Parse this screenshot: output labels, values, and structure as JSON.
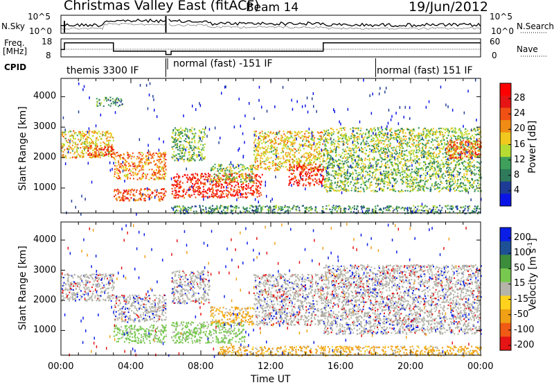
{
  "header": {
    "station": "Christmas Valley East (fitACF)",
    "beam": "Beam 14",
    "date": "19/Jun/2012"
  },
  "top_panels": {
    "nsky_label": "N.Sky",
    "nsky_ticks": [
      "10^5",
      "10^0"
    ],
    "nsearch_label": "N.Search",
    "nsearch_ticks": [
      "10^5",
      "10^0"
    ],
    "freq_label_1": "Freq.",
    "freq_label_2": "[MHz]",
    "freq_ticks": [
      "18",
      "8"
    ],
    "nave_label": "Nave",
    "nave_ticks": [
      "60",
      "0"
    ],
    "cpid_label": "CPID",
    "cpid_segments": [
      "themis 3300 IF",
      "normal (fast) -151 IF",
      "normal (fast) 151 IF"
    ]
  },
  "chart_data": [
    {
      "type": "heatmap",
      "name": "power",
      "ylabel": "Slant Range [km]",
      "yticks": [
        "4000",
        "3000",
        "2000",
        "1000"
      ],
      "ylim": [
        180,
        4600
      ],
      "xlim": [
        0,
        24
      ],
      "colorbar": {
        "label": "Power [dB]",
        "ticks": [
          "28",
          "24",
          "20",
          "16",
          "12",
          "8",
          "4"
        ],
        "colors": [
          "#0a14e6",
          "#1e3c96",
          "#2e7a5a",
          "#3ea05a",
          "#b4dc32",
          "#f0c81e",
          "#f08c14",
          "#f05014",
          "#e61414",
          "#ff0000"
        ]
      },
      "regions": [
        {
          "t0": 0.0,
          "t1": 3.0,
          "r0": 2000,
          "r1": 2900,
          "level": 0.55
        },
        {
          "t0": 1.5,
          "t1": 3.0,
          "r0": 2050,
          "r1": 2400,
          "level": 0.8
        },
        {
          "t0": 2.0,
          "t1": 3.5,
          "r0": 3700,
          "r1": 4000,
          "level": 0.3
        },
        {
          "t0": 3.0,
          "t1": 6.0,
          "r0": 1300,
          "r1": 2200,
          "level": 0.65
        },
        {
          "t0": 3.0,
          "t1": 6.0,
          "r0": 600,
          "r1": 1000,
          "level": 0.75
        },
        {
          "t0": 6.3,
          "t1": 8.2,
          "r0": 1900,
          "r1": 3000,
          "level": 0.4
        },
        {
          "t0": 6.3,
          "t1": 11.5,
          "r0": 700,
          "r1": 1500,
          "level": 0.85
        },
        {
          "t0": 8.5,
          "t1": 11.0,
          "r0": 1200,
          "r1": 1800,
          "level": 0.45
        },
        {
          "t0": 11.0,
          "t1": 15.0,
          "r0": 1600,
          "r1": 2900,
          "level": 0.55
        },
        {
          "t0": 13.0,
          "t1": 15.0,
          "r0": 1100,
          "r1": 1800,
          "level": 0.85
        },
        {
          "t0": 15.0,
          "t1": 24.0,
          "r0": 1900,
          "r1": 3000,
          "level": 0.45
        },
        {
          "t0": 15.0,
          "t1": 24.0,
          "r0": 900,
          "r1": 1900,
          "level": 0.4
        },
        {
          "t0": 22.0,
          "t1": 24.0,
          "r0": 2000,
          "r1": 2600,
          "level": 0.75
        },
        {
          "t0": 6.3,
          "t1": 24.0,
          "r0": 180,
          "r1": 450,
          "level": 0.3
        }
      ]
    },
    {
      "type": "heatmap",
      "name": "velocity",
      "ylabel": "Slant Range [km]",
      "yticks": [
        "4000",
        "3000",
        "2000",
        "1000"
      ],
      "ylim": [
        180,
        4600
      ],
      "xlim": [
        0,
        24
      ],
      "colorbar": {
        "label": "Velocity [m s^-1]",
        "ticks": [
          "200",
          "100",
          "50",
          "15",
          "-15",
          "-50",
          "-100",
          "-200"
        ],
        "colors": [
          "#e61414",
          "#f05a14",
          "#f0a014",
          "#ffd21e",
          "#b4b4aa",
          "#78c850",
          "#3c8c3c",
          "#1e5096",
          "#0a1ee6"
        ]
      },
      "regions": [
        {
          "t0": 0.0,
          "t1": 3.0,
          "r0": 2000,
          "r1": 2900,
          "level": 0.45
        },
        {
          "t0": 3.0,
          "t1": 6.0,
          "r0": 1300,
          "r1": 2200,
          "level": 0.45
        },
        {
          "t0": 3.0,
          "t1": 6.0,
          "r0": 600,
          "r1": 1200,
          "level": 0.6
        },
        {
          "t0": 6.3,
          "t1": 8.5,
          "r0": 1900,
          "r1": 3000,
          "level": 0.45
        },
        {
          "t0": 6.3,
          "t1": 10.5,
          "r0": 600,
          "r1": 1300,
          "level": 0.6
        },
        {
          "t0": 8.5,
          "t1": 11.0,
          "r0": 1200,
          "r1": 1800,
          "level": 0.3
        },
        {
          "t0": 11.0,
          "t1": 15.0,
          "r0": 1200,
          "r1": 2900,
          "level": 0.45
        },
        {
          "t0": 15.0,
          "t1": 24.0,
          "r0": 1900,
          "r1": 3200,
          "level": 0.45
        },
        {
          "t0": 15.0,
          "t1": 24.0,
          "r0": 900,
          "r1": 1900,
          "level": 0.45
        },
        {
          "t0": 9.0,
          "t1": 24.0,
          "r0": 180,
          "r1": 500,
          "level": 0.25
        }
      ]
    }
  ],
  "x_axis": {
    "ticks": [
      "00:00",
      "04:00",
      "08:00",
      "12:00",
      "16:00",
      "20:00",
      "00:00"
    ],
    "label": "Time UT"
  },
  "colors": {
    "grid_line": "#000000",
    "background": "#ffffff"
  }
}
